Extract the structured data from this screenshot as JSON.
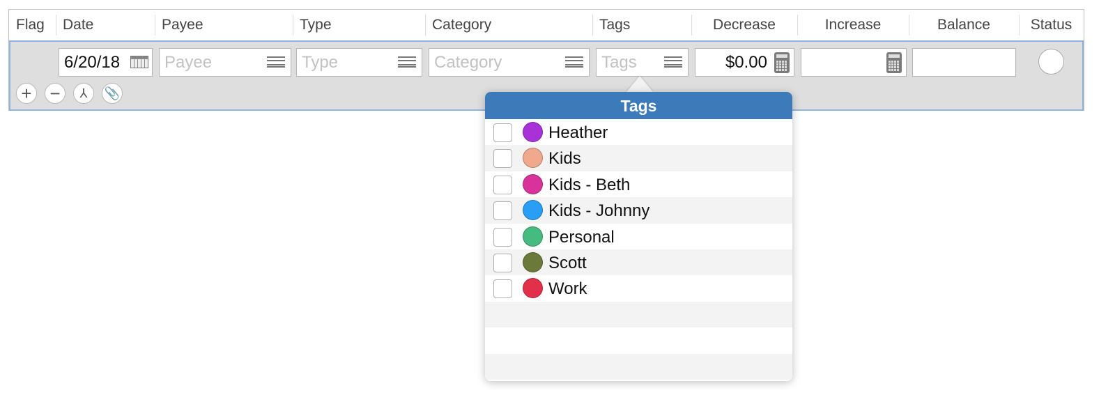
{
  "columns": [
    "Flag",
    "Date",
    "Payee",
    "Type",
    "Category",
    "Tags",
    "Decrease",
    "Increase",
    "Balance",
    "Status"
  ],
  "edit_row": {
    "date": "6/20/18",
    "payee_placeholder": "Payee",
    "type_placeholder": "Type",
    "category_placeholder": "Category",
    "tags_placeholder": "Tags",
    "decrease": "$0.00",
    "increase": "",
    "balance": ""
  },
  "row_buttons": [
    "plus-icon",
    "minus-icon",
    "split-icon",
    "paperclip-icon"
  ],
  "tags_popover": {
    "title": "Tags",
    "accent": "#3d7aba",
    "items": [
      {
        "label": "Heather",
        "color": "#a832d8",
        "checked": false
      },
      {
        "label": "Kids",
        "color": "#f0a98c",
        "checked": false
      },
      {
        "label": "Kids - Beth",
        "color": "#d8339a",
        "checked": false
      },
      {
        "label": "Kids - Johnny",
        "color": "#2a9ef5",
        "checked": false
      },
      {
        "label": "Personal",
        "color": "#45bb80",
        "checked": false
      },
      {
        "label": "Scott",
        "color": "#6b7a3a",
        "checked": false
      },
      {
        "label": "Work",
        "color": "#e3304a",
        "checked": false
      }
    ]
  }
}
